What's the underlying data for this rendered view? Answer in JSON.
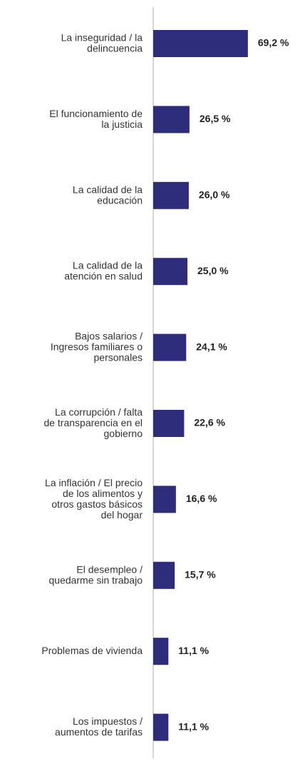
{
  "chart_data": {
    "type": "barh",
    "categories": [
      [
        "La inseguridad / la",
        "delincuencia"
      ],
      [
        "El funcionamiento de",
        "la justicia"
      ],
      [
        "La calidad de la",
        "educación"
      ],
      [
        "La calidad de la",
        "atención en salud"
      ],
      [
        "Bajos salarios /",
        "Ingresos familiares o",
        "personales"
      ],
      [
        "La corrupción / falta",
        "de transparencia en el",
        "gobierno"
      ],
      [
        "La inflación / El precio",
        "de los alimentos y",
        "otros gastos básicos",
        "del hogar"
      ],
      [
        "El desempleo /",
        "quedarme sin trabajo"
      ],
      [
        "Problemas de vivienda"
      ],
      [
        "Los impuestos /",
        "aumentos de tarifas"
      ]
    ],
    "values": [
      69.2,
      26.5,
      26.0,
      25.0,
      24.1,
      22.6,
      16.6,
      15.7,
      11.1,
      11.1
    ],
    "value_labels": [
      "69,2 %",
      "26,5 %",
      "26,0 %",
      "25,0 %",
      "24,1 %",
      "22,6 %",
      "16,6 %",
      "15,7 %",
      "11,1 %",
      "11,1 %"
    ],
    "color": "#2e2d7c",
    "xlim": [
      0,
      100
    ]
  }
}
